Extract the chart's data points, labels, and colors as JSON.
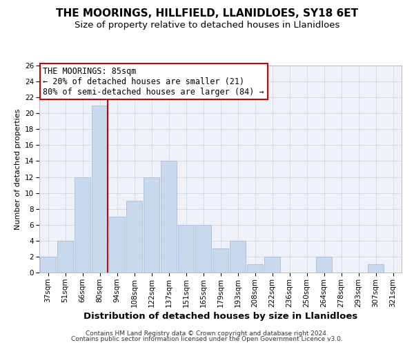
{
  "title": "THE MOORINGS, HILLFIELD, LLANIDLOES, SY18 6ET",
  "subtitle": "Size of property relative to detached houses in Llanidloes",
  "xlabel": "Distribution of detached houses by size in Llanidloes",
  "ylabel": "Number of detached properties",
  "bar_color": "#c8d9ee",
  "bar_edge_color": "#a8bedd",
  "grid_color": "#d0d8e8",
  "background_color": "#ffffff",
  "plot_bg_color": "#eef2f8",
  "categories": [
    "37sqm",
    "51sqm",
    "66sqm",
    "80sqm",
    "94sqm",
    "108sqm",
    "122sqm",
    "137sqm",
    "151sqm",
    "165sqm",
    "179sqm",
    "193sqm",
    "208sqm",
    "222sqm",
    "236sqm",
    "250sqm",
    "264sqm",
    "278sqm",
    "293sqm",
    "307sqm",
    "321sqm"
  ],
  "values": [
    2,
    4,
    12,
    21,
    7,
    9,
    12,
    14,
    6,
    6,
    3,
    4,
    1,
    2,
    0,
    0,
    2,
    0,
    0,
    1,
    0
  ],
  "vline_color": "#cc0000",
  "vline_x": 3.475,
  "ylim": [
    0,
    26
  ],
  "yticks": [
    0,
    2,
    4,
    6,
    8,
    10,
    12,
    14,
    16,
    18,
    20,
    22,
    24,
    26
  ],
  "annotation_title": "THE MOORINGS: 85sqm",
  "annotation_line1": "← 20% of detached houses are smaller (21)",
  "annotation_line2": "80% of semi-detached houses are larger (84) →",
  "annotation_box_color": "#ffffff",
  "annotation_box_edge": "#cc0000",
  "footer_line1": "Contains HM Land Registry data © Crown copyright and database right 2024.",
  "footer_line2": "Contains public sector information licensed under the Open Government Licence v3.0.",
  "title_fontsize": 11,
  "subtitle_fontsize": 9.5,
  "xlabel_fontsize": 9.5,
  "ylabel_fontsize": 8,
  "tick_fontsize": 7.5,
  "annotation_fontsize": 8.5,
  "footer_fontsize": 6.5
}
